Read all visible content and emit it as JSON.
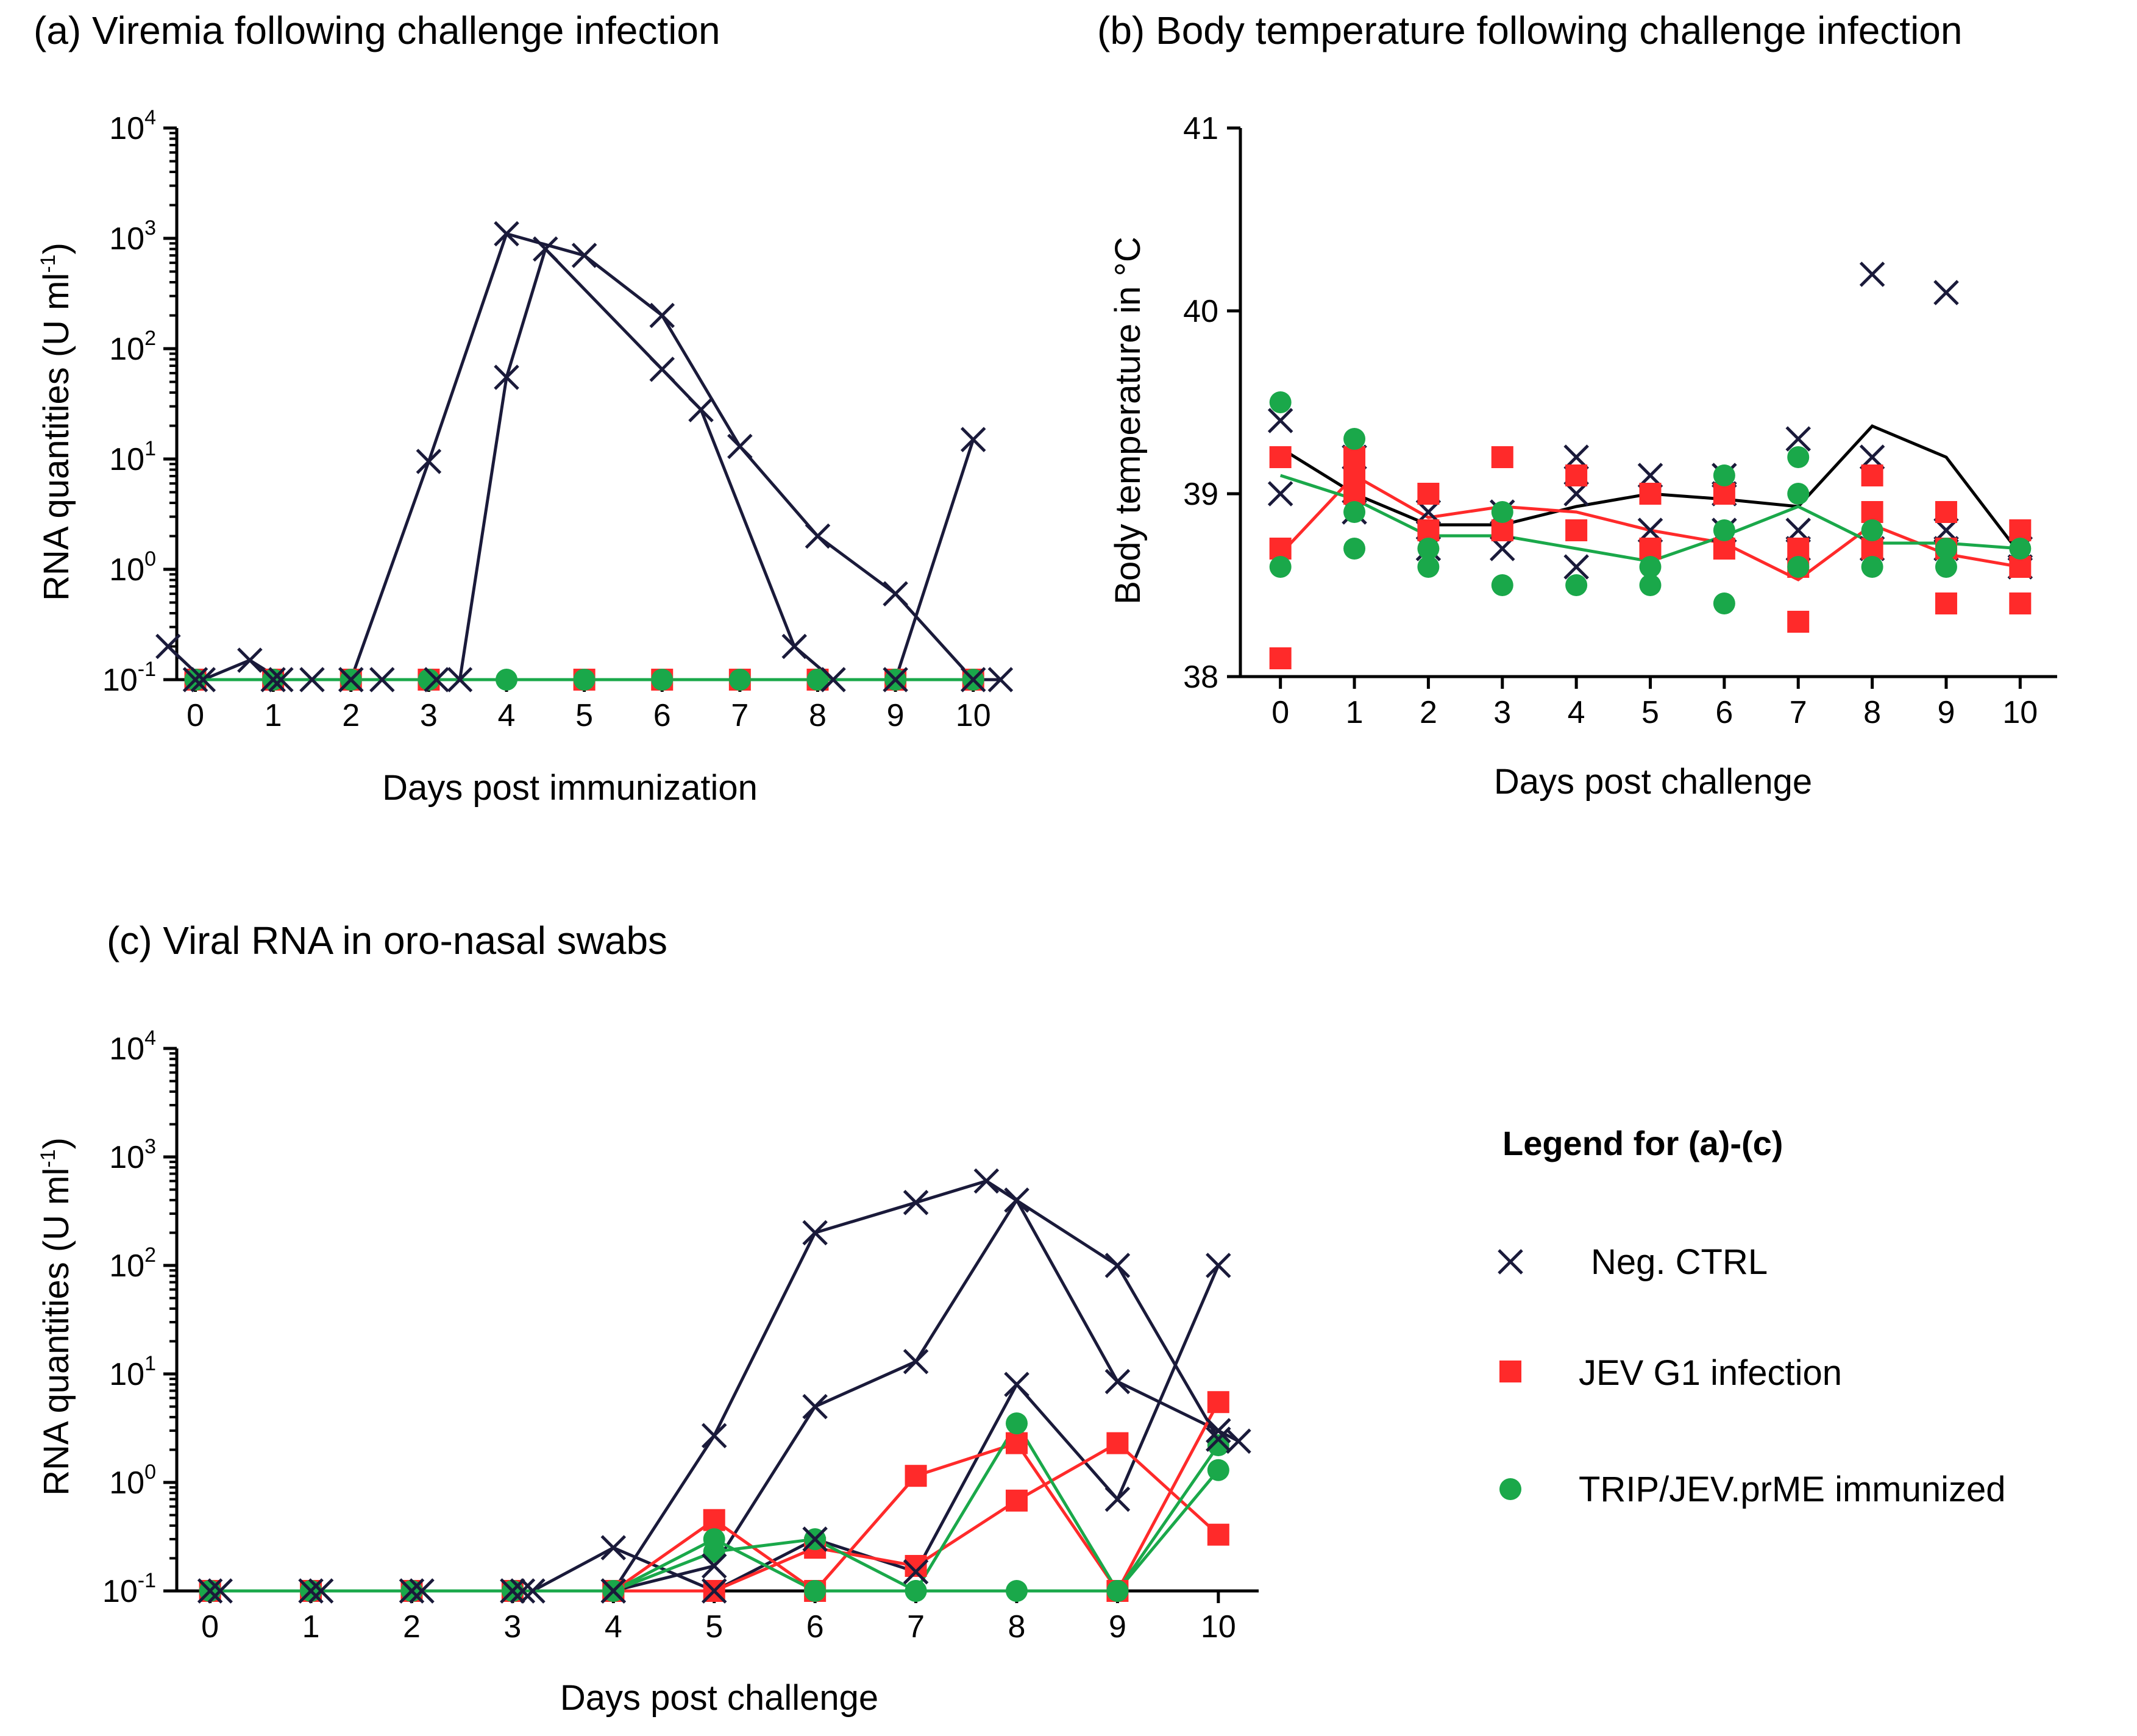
{
  "legend": {
    "title": "Legend for (a)-(c)",
    "items": [
      {
        "label": "Neg. CTRL",
        "marker": "cross",
        "color": "#1a1a3a"
      },
      {
        "label": "JEV G1 infection",
        "marker": "square",
        "color": "#ff2a2a"
      },
      {
        "label": "TRIP/JEV.prME immunized",
        "marker": "circle",
        "color": "#1aa84a"
      }
    ]
  },
  "chart_data": [
    {
      "id": "a",
      "type": "line",
      "title": "(a) Viremia following challenge infection",
      "xlabel": "Days post immunization",
      "ylabel": "RNA quantities (U ml",
      "ylabel_sup": "-1",
      "ylabel_end": ")",
      "yscale": "log",
      "ylim": [
        0.1,
        10000
      ],
      "ytick_base": "10",
      "ytick_exps": [
        "-1",
        "0",
        "1",
        "2",
        "3",
        "4"
      ],
      "xlim": [
        -0.2,
        10.3
      ],
      "xticks": [
        "0",
        "1",
        "2",
        "3",
        "4",
        "5",
        "6",
        "7",
        "8",
        "9",
        "10"
      ],
      "series": [
        {
          "name": "Neg. CTRL",
          "marker": "cross",
          "color": "#1a1a3a",
          "points": [
            [
              -0.35,
              0.2
            ],
            [
              0.1,
              0.1
            ],
            [
              0.7,
              0.15
            ],
            [
              1.1,
              0.1
            ],
            [
              1.5,
              0.1
            ],
            [
              2,
              0.1
            ],
            [
              2.4,
              0.1
            ]
          ]
        },
        {
          "name": "Neg. CTRL",
          "marker": "cross",
          "color": "#1a1a3a",
          "points": [
            [
              0,
              0.1
            ],
            [
              1,
              0.1
            ],
            [
              2,
              0.1
            ],
            [
              3,
              9.5
            ],
            [
              4,
              1100
            ],
            [
              5,
              700
            ],
            [
              6,
              200
            ],
            [
              7,
              13
            ],
            [
              8,
              2
            ],
            [
              9,
              0.6
            ],
            [
              10,
              0.1
            ],
            [
              10.35,
              0.1
            ]
          ]
        },
        {
          "name": "Neg. CTRL",
          "marker": "cross",
          "color": "#1a1a3a",
          "points": [
            [
              3.1,
              0.1
            ],
            [
              3.4,
              0.1
            ],
            [
              4,
              55
            ],
            [
              4.5,
              800
            ],
            [
              6,
              65
            ],
            [
              6.5,
              28
            ],
            [
              7.7,
              0.2
            ],
            [
              8.2,
              0.1
            ],
            [
              9,
              0.1
            ],
            [
              10,
              15
            ]
          ]
        },
        {
          "name": "JEV G1 infection",
          "marker": "square",
          "color": "#ff2a2a",
          "points": [
            [
              0,
              0.1
            ],
            [
              1,
              0.1
            ],
            [
              2,
              0.1
            ],
            [
              3,
              0.1
            ],
            [
              5,
              0.1
            ],
            [
              6,
              0.1
            ],
            [
              7,
              0.1
            ],
            [
              8,
              0.1
            ],
            [
              9,
              0.1
            ],
            [
              10,
              0.1
            ]
          ]
        },
        {
          "name": "TRIP/JEV.prME immunized",
          "marker": "circle",
          "color": "#1aa84a",
          "points": [
            [
              0,
              0.1
            ],
            [
              1,
              0.1
            ],
            [
              2,
              0.1
            ],
            [
              3,
              0.1
            ],
            [
              4,
              0.1
            ],
            [
              5,
              0.1
            ],
            [
              6,
              0.1
            ],
            [
              7,
              0.1
            ],
            [
              8,
              0.1
            ],
            [
              9,
              0.1
            ],
            [
              10,
              0.1
            ]
          ]
        }
      ]
    },
    {
      "id": "b",
      "type": "scatter",
      "title": "(b) Body temperature  following challenge infection",
      "xlabel": "Days post challenge",
      "ylabel": "Body temperature in °C",
      "yscale": "linear",
      "ylim": [
        38,
        41
      ],
      "yticks": [
        "38",
        "39",
        "40",
        "41"
      ],
      "xlim": [
        -0.5,
        10.5
      ],
      "xticks": [
        "0",
        "1",
        "2",
        "3",
        "4",
        "5",
        "6",
        "7",
        "8",
        "9",
        "10"
      ],
      "mean_lines": [
        {
          "name": "Neg. CTRL mean",
          "color": "#000000",
          "points": [
            [
              0,
              39.25
            ],
            [
              1,
              39.0
            ],
            [
              2,
              38.83
            ],
            [
              3,
              38.83
            ],
            [
              4,
              38.93
            ],
            [
              5,
              39.0
            ],
            [
              6,
              38.97
            ],
            [
              7,
              38.93
            ],
            [
              8,
              39.37
            ],
            [
              9,
              39.2
            ],
            [
              10,
              38.67
            ]
          ]
        },
        {
          "name": "JEV G1 mean",
          "color": "#ff2a2a",
          "points": [
            [
              0,
              38.67
            ],
            [
              1,
              39.1
            ],
            [
              2,
              38.87
            ],
            [
              3,
              38.93
            ],
            [
              4,
              38.9
            ],
            [
              5,
              38.8
            ],
            [
              6,
              38.73
            ],
            [
              7,
              38.53
            ],
            [
              8,
              38.83
            ],
            [
              9,
              38.67
            ],
            [
              10,
              38.6
            ]
          ]
        },
        {
          "name": "TRIP/JEV.prME mean",
          "color": "#1aa84a",
          "points": [
            [
              0,
              39.1
            ],
            [
              1,
              38.97
            ],
            [
              2,
              38.77
            ],
            [
              3,
              38.77
            ],
            [
              4,
              38.7
            ],
            [
              5,
              38.63
            ],
            [
              6,
              38.77
            ],
            [
              7,
              38.93
            ],
            [
              8,
              38.73
            ],
            [
              9,
              38.73
            ],
            [
              10,
              38.7
            ]
          ]
        }
      ],
      "series": [
        {
          "name": "Neg. CTRL",
          "marker": "cross",
          "color": "#1a1a3a",
          "points": [
            [
              0,
              39.4
            ],
            [
              0,
              39.0
            ],
            [
              1,
              39.2
            ],
            [
              1,
              38.9
            ],
            [
              2,
              38.9
            ],
            [
              2,
              38.7
            ],
            [
              3,
              38.9
            ],
            [
              3,
              38.7
            ],
            [
              4,
              39.2
            ],
            [
              4,
              39.0
            ],
            [
              4,
              38.6
            ],
            [
              5,
              39.1
            ],
            [
              5,
              38.8
            ],
            [
              6,
              39.1
            ],
            [
              6,
              39.0
            ],
            [
              6,
              38.8
            ],
            [
              7,
              39.3
            ],
            [
              7,
              38.8
            ],
            [
              7,
              38.7
            ],
            [
              8,
              40.2
            ],
            [
              8,
              39.2
            ],
            [
              8,
              38.7
            ],
            [
              9,
              40.1
            ],
            [
              9,
              38.8
            ],
            [
              9,
              38.7
            ],
            [
              10,
              38.7
            ],
            [
              10,
              38.6
            ]
          ]
        },
        {
          "name": "JEV G1 infection",
          "marker": "square",
          "color": "#ff2a2a",
          "points": [
            [
              0,
              39.2
            ],
            [
              0,
              38.7
            ],
            [
              0,
              38.1
            ],
            [
              1,
              39.2
            ],
            [
              1,
              39.1
            ],
            [
              1,
              39.0
            ],
            [
              2,
              39.0
            ],
            [
              2,
              38.8
            ],
            [
              3,
              39.2
            ],
            [
              3,
              38.8
            ],
            [
              4,
              39.1
            ],
            [
              4,
              38.8
            ],
            [
              5,
              39.0
            ],
            [
              5,
              38.7
            ],
            [
              6,
              39.0
            ],
            [
              6,
              38.7
            ],
            [
              7,
              38.7
            ],
            [
              7,
              38.6
            ],
            [
              7,
              38.3
            ],
            [
              8,
              39.1
            ],
            [
              8,
              38.9
            ],
            [
              8,
              38.7
            ],
            [
              9,
              38.9
            ],
            [
              9,
              38.7
            ],
            [
              9,
              38.4
            ],
            [
              10,
              38.8
            ],
            [
              10,
              38.6
            ],
            [
              10,
              38.4
            ]
          ]
        },
        {
          "name": "TRIP/JEV.prME immunized",
          "marker": "circle",
          "color": "#1aa84a",
          "points": [
            [
              0,
              39.5
            ],
            [
              0,
              38.6
            ],
            [
              1,
              39.3
            ],
            [
              1,
              38.9
            ],
            [
              1,
              38.7
            ],
            [
              2,
              38.7
            ],
            [
              2,
              38.6
            ],
            [
              3,
              38.5
            ],
            [
              3,
              38.9
            ],
            [
              4,
              38.5
            ],
            [
              5,
              38.6
            ],
            [
              5,
              38.5
            ],
            [
              6,
              39.1
            ],
            [
              6,
              38.8
            ],
            [
              6,
              38.4
            ],
            [
              7,
              39.2
            ],
            [
              7,
              39.0
            ],
            [
              7,
              38.6
            ],
            [
              8,
              38.8
            ],
            [
              8,
              38.6
            ],
            [
              9,
              38.6
            ],
            [
              9,
              38.7
            ],
            [
              10,
              38.7
            ]
          ]
        }
      ]
    },
    {
      "id": "c",
      "type": "line",
      "title": "(c) Viral RNA in oro-nasal swabs",
      "xlabel": "Days post challenge",
      "ylabel": "RNA quantities (U ml",
      "ylabel_sup": "-1",
      "ylabel_end": ")",
      "yscale": "log",
      "ylim": [
        0.1,
        10000
      ],
      "ytick_base": "10",
      "ytick_exps": [
        "-1",
        "0",
        "1",
        "2",
        "3",
        "4"
      ],
      "xlim": [
        -0.3,
        10.4
      ],
      "xticks": [
        "0",
        "1",
        "2",
        "3",
        "4",
        "5",
        "6",
        "7",
        "8",
        "9",
        "10"
      ],
      "series": [
        {
          "name": "Neg. CTRL",
          "marker": "cross",
          "color": "#1a1a3a",
          "points": [
            [
              0,
              0.1
            ],
            [
              1,
              0.1
            ],
            [
              2,
              0.1
            ],
            [
              3,
              0.1
            ],
            [
              4,
              0.1
            ],
            [
              5,
              2.7
            ],
            [
              6,
              200
            ],
            [
              7,
              380
            ],
            [
              7.7,
              600
            ],
            [
              9,
              100
            ],
            [
              10,
              2.5
            ]
          ]
        },
        {
          "name": "Neg. CTRL",
          "marker": "cross",
          "color": "#1a1a3a",
          "points": [
            [
              0.1,
              0.1
            ],
            [
              1.1,
              0.1
            ],
            [
              2.1,
              0.1
            ],
            [
              3.1,
              0.1
            ],
            [
              4,
              0.1
            ],
            [
              5,
              0.17
            ],
            [
              6,
              5
            ],
            [
              7,
              13
            ],
            [
              8,
              400
            ],
            [
              9,
              8.5
            ],
            [
              10,
              3
            ],
            [
              10.2,
              2.4
            ]
          ]
        },
        {
          "name": "Neg. CTRL",
          "marker": "cross",
          "color": "#1a1a3a",
          "points": [
            [
              3.2,
              0.1
            ],
            [
              4,
              0.25
            ],
            [
              5,
              0.1
            ],
            [
              6,
              0.3
            ],
            [
              7,
              0.15
            ],
            [
              8,
              8
            ],
            [
              9,
              0.7
            ],
            [
              10,
              100
            ]
          ]
        },
        {
          "name": "JEV G1 infection",
          "marker": "square",
          "color": "#ff2a2a",
          "points": [
            [
              0,
              0.1
            ],
            [
              1,
              0.1
            ],
            [
              2,
              0.1
            ],
            [
              3,
              0.1
            ],
            [
              4,
              0.1
            ],
            [
              5,
              0.45
            ],
            [
              6,
              0.1
            ],
            [
              7,
              1.15
            ],
            [
              8,
              2.3
            ],
            [
              9,
              0.1
            ],
            [
              10,
              5.5
            ]
          ]
        },
        {
          "name": "JEV G1 infection",
          "marker": "square",
          "color": "#ff2a2a",
          "points": [
            [
              4,
              0.1
            ],
            [
              5,
              0.1
            ],
            [
              6,
              0.25
            ],
            [
              7,
              0.17
            ],
            [
              8,
              0.68
            ],
            [
              9,
              2.3
            ],
            [
              10,
              0.33
            ]
          ]
        },
        {
          "name": "TRIP/JEV.prME immunized",
          "marker": "circle",
          "color": "#1aa84a",
          "points": [
            [
              0,
              0.1
            ],
            [
              1,
              0.1
            ],
            [
              2,
              0.1
            ],
            [
              3,
              0.1
            ],
            [
              4,
              0.1
            ],
            [
              5,
              0.23
            ],
            [
              6,
              0.3
            ],
            [
              7,
              0.1
            ],
            [
              8,
              3.5
            ],
            [
              9,
              0.1
            ],
            [
              10,
              1.3
            ]
          ]
        },
        {
          "name": "TRIP/JEV.prME immunized",
          "marker": "circle",
          "color": "#1aa84a",
          "points": [
            [
              4,
              0.1
            ],
            [
              5,
              0.3
            ],
            [
              6,
              0.1
            ],
            [
              7,
              0.1
            ],
            [
              8,
              0.1
            ],
            [
              9,
              0.1
            ],
            [
              10,
              2.2
            ]
          ]
        }
      ]
    }
  ]
}
